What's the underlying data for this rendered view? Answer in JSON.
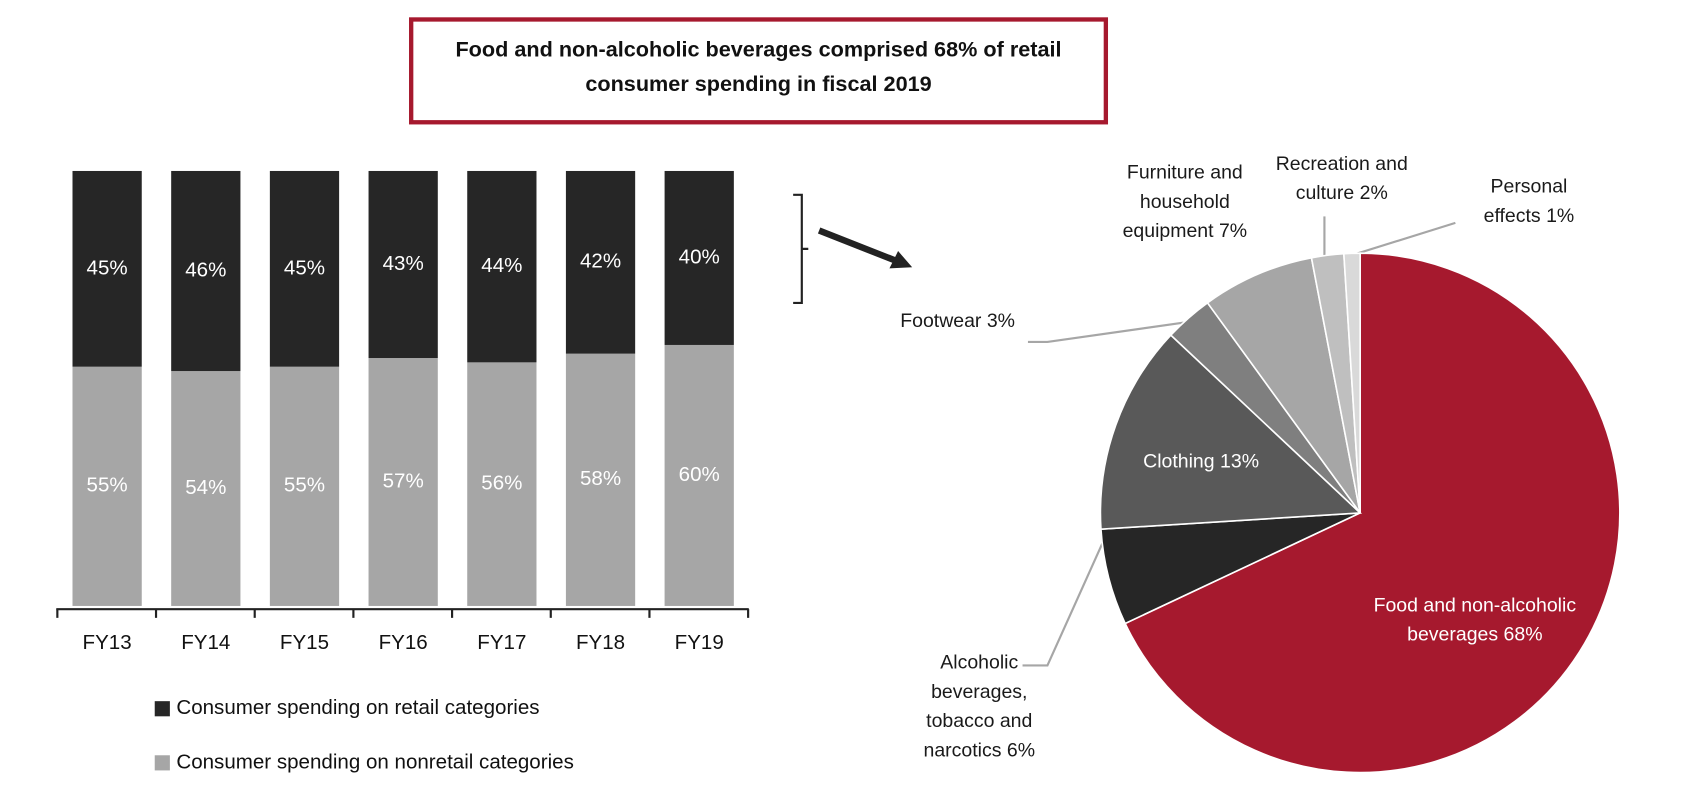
{
  "title": "Food and non-alcoholic beverages comprised 68% of retail consumer spending in fiscal 2019",
  "chart_data": [
    {
      "type": "stacked-bar",
      "categories": [
        "FY13",
        "FY14",
        "FY15",
        "FY16",
        "FY17",
        "FY18",
        "FY19"
      ],
      "ylim": [
        0,
        100
      ],
      "series": [
        {
          "name": "Consumer spending on nonretail categories",
          "color": "#a6a6a6",
          "values": [
            55,
            54,
            55,
            57,
            56,
            58,
            60
          ],
          "value_labels": [
            "55%",
            "54%",
            "55%",
            "57%",
            "56%",
            "58%",
            "60%"
          ]
        },
        {
          "name": "Consumer spending on retail categories",
          "color": "#262626",
          "values": [
            45,
            46,
            45,
            43,
            44,
            42,
            40
          ],
          "value_labels": [
            "45%",
            "46%",
            "45%",
            "43%",
            "44%",
            "42%",
            "40%"
          ]
        }
      ]
    },
    {
      "type": "pie",
      "categories": [
        "Food and non-alcoholic beverages",
        "Alcoholic beverages, tobacco and narcotics",
        "Clothing",
        "Footwear",
        "Furniture and household equipment",
        "Recreation and culture",
        "Personal effects"
      ],
      "values": [
        68,
        6,
        13,
        3,
        7,
        2,
        1
      ],
      "value_labels": [
        "68%",
        "6%",
        "13%",
        "3%",
        "7%",
        "2%",
        "1%"
      ],
      "colors": [
        "#a6192e",
        "#262626",
        "#595959",
        "#7f7f7f",
        "#a6a6a6",
        "#bfbfbf",
        "#d9d9d9"
      ]
    }
  ]
}
